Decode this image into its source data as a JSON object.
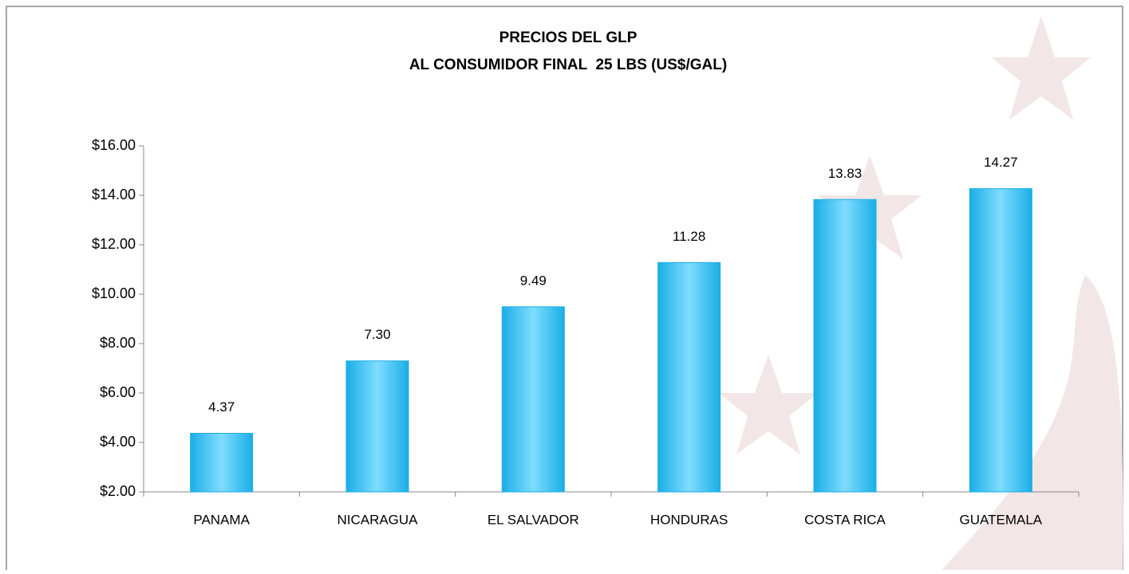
{
  "chart_data": {
    "type": "bar",
    "title": "PRECIOS DEL GLP",
    "subtitle": "AL CONSUMIDOR FINAL  25 LBS (US$/GAL)",
    "categories": [
      "PANAMA",
      "NICARAGUA",
      "EL SALVADOR",
      "HONDURAS",
      "COSTA RICA",
      "GUATEMALA"
    ],
    "values": [
      4.37,
      7.3,
      9.49,
      11.28,
      13.83,
      14.27
    ],
    "value_labels": [
      "4.37",
      "7.30",
      "9.49",
      "11.28",
      "13.83",
      "14.27"
    ],
    "color": "#1aaee6",
    "ylim": [
      2,
      16
    ],
    "yticks": [
      {
        "value": 2,
        "label": "$2.00"
      },
      {
        "value": 4,
        "label": "$4.00"
      },
      {
        "value": 6,
        "label": "$6.00"
      },
      {
        "value": 8,
        "label": "$8.00"
      },
      {
        "value": 10,
        "label": "$10.00"
      },
      {
        "value": 12,
        "label": "$12.00"
      },
      {
        "value": 14,
        "label": "$14.00"
      },
      {
        "value": 16,
        "label": "$16.00"
      }
    ],
    "grid": false
  }
}
